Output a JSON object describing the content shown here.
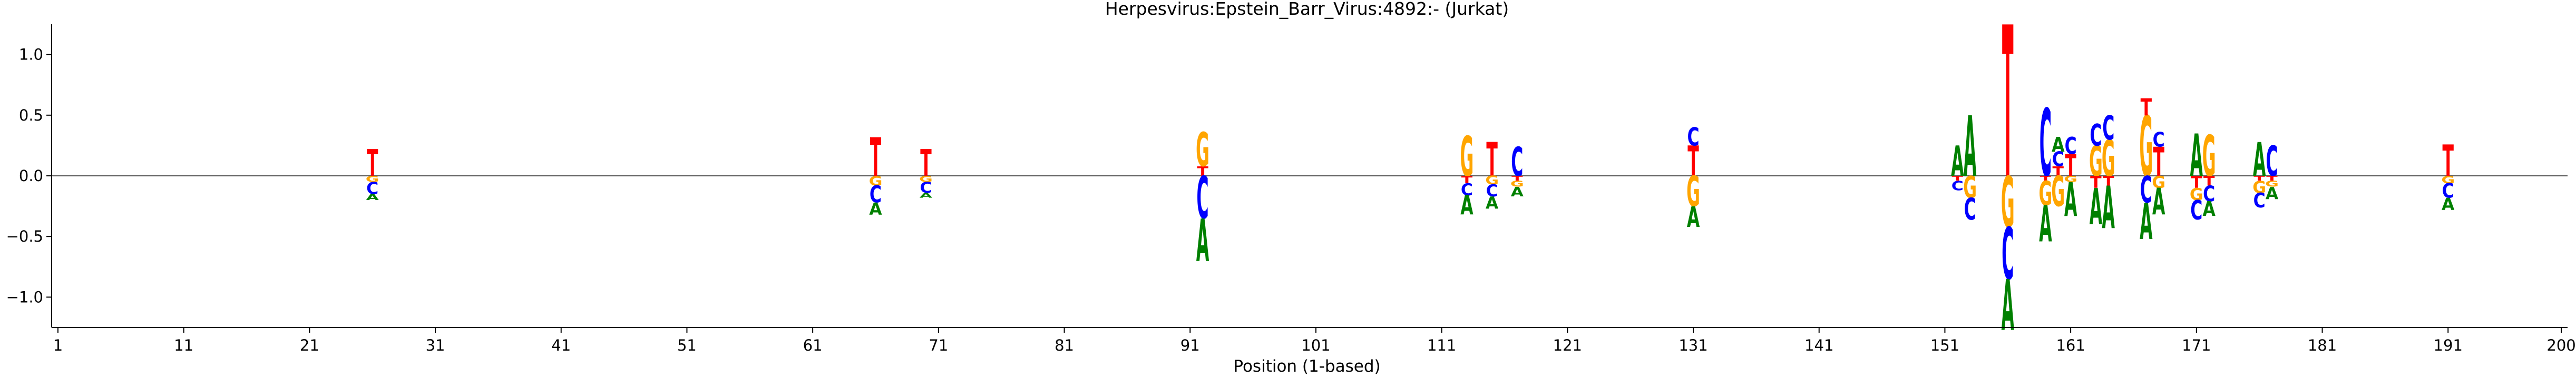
{
  "chart_data": {
    "type": "sequence-logo",
    "title": "Herpesvirus:Epstein_Barr_Virus:4892:-  (Jurkat)",
    "xlabel": "Position (1-based)",
    "ylabel": "",
    "xlim": [
      0.5,
      200.5
    ],
    "ylim": [
      -1.25,
      1.25
    ],
    "x_ticks": [
      1,
      11,
      21,
      31,
      41,
      51,
      61,
      71,
      81,
      91,
      101,
      111,
      121,
      131,
      141,
      151,
      161,
      171,
      181,
      191,
      200
    ],
    "y_ticks": [
      -1.0,
      -0.5,
      0.0,
      0.5,
      1.0
    ],
    "y_tick_labels": [
      "−1.0",
      "−0.5",
      "0.0",
      "0.5",
      "1.0"
    ],
    "colors": {
      "A": "#008000",
      "C": "#0000ff",
      "G": "#ffa500",
      "T": "#ff0000"
    },
    "positions": [
      {
        "pos": 26,
        "letters": [
          {
            "base": "T",
            "value": 0.22
          },
          {
            "base": "G",
            "value": -0.05
          },
          {
            "base": "C",
            "value": -0.1
          },
          {
            "base": "A",
            "value": -0.05
          }
        ]
      },
      {
        "pos": 66,
        "letters": [
          {
            "base": "T",
            "value": 0.32
          },
          {
            "base": "G",
            "value": -0.08
          },
          {
            "base": "C",
            "value": -0.14
          },
          {
            "base": "A",
            "value": -0.1
          }
        ]
      },
      {
        "pos": 70,
        "letters": [
          {
            "base": "T",
            "value": 0.22
          },
          {
            "base": "G",
            "value": -0.05
          },
          {
            "base": "C",
            "value": -0.09
          },
          {
            "base": "A",
            "value": -0.04
          }
        ]
      },
      {
        "pos": 92,
        "letters": [
          {
            "base": "T",
            "value": 0.08
          },
          {
            "base": "G",
            "value": 0.28
          },
          {
            "base": "C",
            "value": -0.35
          },
          {
            "base": "A",
            "value": -0.35
          }
        ]
      },
      {
        "pos": 113,
        "letters": [
          {
            "base": "G",
            "value": 0.33
          },
          {
            "base": "T",
            "value": -0.06
          },
          {
            "base": "C",
            "value": -0.1
          },
          {
            "base": "A",
            "value": -0.16
          }
        ]
      },
      {
        "pos": 115,
        "letters": [
          {
            "base": "T",
            "value": 0.28
          },
          {
            "base": "G",
            "value": -0.07
          },
          {
            "base": "C",
            "value": -0.1
          },
          {
            "base": "A",
            "value": -0.1
          }
        ]
      },
      {
        "pos": 117,
        "letters": [
          {
            "base": "C",
            "value": 0.24
          },
          {
            "base": "T",
            "value": -0.04
          },
          {
            "base": "G",
            "value": -0.05
          },
          {
            "base": "A",
            "value": -0.08
          }
        ]
      },
      {
        "pos": 131,
        "letters": [
          {
            "base": "T",
            "value": 0.25
          },
          {
            "base": "C",
            "value": 0.15
          },
          {
            "base": "G",
            "value": -0.25
          },
          {
            "base": "A",
            "value": -0.17
          }
        ]
      },
      {
        "pos": 152,
        "letters": [
          {
            "base": "A",
            "value": 0.25
          },
          {
            "base": "T",
            "value": -0.04
          },
          {
            "base": "C",
            "value": -0.08
          }
        ]
      },
      {
        "pos": 153,
        "letters": [
          {
            "base": "A",
            "value": 0.5
          },
          {
            "base": "G",
            "value": -0.18
          },
          {
            "base": "C",
            "value": -0.18
          }
        ]
      },
      {
        "pos": 156,
        "letters": [
          {
            "base": "T",
            "value": 1.25
          },
          {
            "base": "G",
            "value": -0.42
          },
          {
            "base": "C",
            "value": -0.43
          },
          {
            "base": "A",
            "value": -0.42
          }
        ]
      },
      {
        "pos": 159,
        "letters": [
          {
            "base": "C",
            "value": 0.56
          },
          {
            "base": "T",
            "value": -0.04
          },
          {
            "base": "G",
            "value": -0.2
          },
          {
            "base": "A",
            "value": -0.3
          }
        ]
      },
      {
        "pos": 160,
        "letters": [
          {
            "base": "T",
            "value": 0.08
          },
          {
            "base": "C",
            "value": 0.12
          },
          {
            "base": "A",
            "value": 0.12
          },
          {
            "base": "G",
            "value": -0.25
          }
        ]
      },
      {
        "pos": 161,
        "letters": [
          {
            "base": "T",
            "value": 0.18
          },
          {
            "base": "G",
            "value": -0.05
          },
          {
            "base": "C",
            "value": 0.14
          },
          {
            "base": "A",
            "value": -0.28
          }
        ]
      },
      {
        "pos": 163,
        "letters": [
          {
            "base": "G",
            "value": 0.25
          },
          {
            "base": "C",
            "value": 0.18
          },
          {
            "base": "T",
            "value": -0.1
          },
          {
            "base": "A",
            "value": -0.3
          }
        ]
      },
      {
        "pos": 164,
        "letters": [
          {
            "base": "G",
            "value": 0.3
          },
          {
            "base": "C",
            "value": 0.2
          },
          {
            "base": "T",
            "value": -0.08
          },
          {
            "base": "A",
            "value": -0.35
          }
        ]
      },
      {
        "pos": 167,
        "letters": [
          {
            "base": "G",
            "value": 0.5
          },
          {
            "base": "T",
            "value": 0.14
          },
          {
            "base": "C",
            "value": -0.22
          },
          {
            "base": "A",
            "value": -0.3
          }
        ]
      },
      {
        "pos": 168,
        "letters": [
          {
            "base": "T",
            "value": 0.24
          },
          {
            "base": "C",
            "value": 0.12
          },
          {
            "base": "G",
            "value": -0.1
          },
          {
            "base": "A",
            "value": -0.22
          }
        ]
      },
      {
        "pos": 171,
        "letters": [
          {
            "base": "A",
            "value": 0.35
          },
          {
            "base": "T",
            "value": -0.1
          },
          {
            "base": "G",
            "value": -0.1
          },
          {
            "base": "C",
            "value": -0.16
          }
        ]
      },
      {
        "pos": 172,
        "letters": [
          {
            "base": "G",
            "value": 0.34
          },
          {
            "base": "T",
            "value": -0.08
          },
          {
            "base": "C",
            "value": -0.13
          },
          {
            "base": "A",
            "value": -0.12
          }
        ]
      },
      {
        "pos": 176,
        "letters": [
          {
            "base": "A",
            "value": 0.28
          },
          {
            "base": "T",
            "value": -0.04
          },
          {
            "base": "G",
            "value": -0.1
          },
          {
            "base": "C",
            "value": -0.12
          }
        ]
      },
      {
        "pos": 177,
        "letters": [
          {
            "base": "C",
            "value": 0.25
          },
          {
            "base": "T",
            "value": -0.04
          },
          {
            "base": "G",
            "value": -0.05
          },
          {
            "base": "A",
            "value": -0.1
          }
        ]
      },
      {
        "pos": 191,
        "letters": [
          {
            "base": "T",
            "value": 0.26
          },
          {
            "base": "G",
            "value": -0.06
          },
          {
            "base": "C",
            "value": -0.12
          },
          {
            "base": "A",
            "value": -0.1
          }
        ]
      }
    ]
  }
}
